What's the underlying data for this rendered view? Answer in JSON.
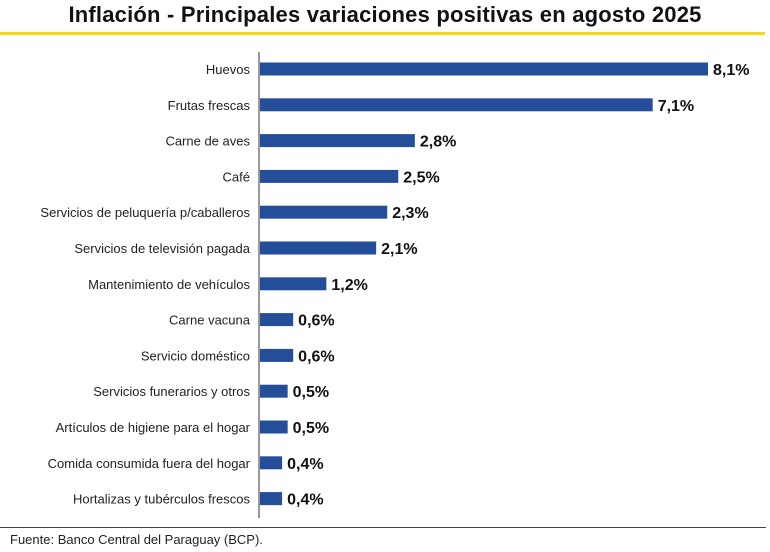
{
  "chart_data": {
    "type": "bar",
    "orientation": "horizontal",
    "title": "Inflación - Principales variaciones positivas en agosto 2025",
    "categories": [
      "Huevos",
      "Frutas frescas",
      "Carne de aves",
      "Café",
      "Servicios de peluquería p/caballeros",
      "Servicios de televisión pagada",
      "Mantenimiento de vehículos",
      "Carne vacuna",
      "Servicio doméstico",
      "Servicios funerarios y otros",
      "Artículos de higiene para el hogar",
      "Comida consumida fuera del hogar",
      "Hortalizas y tubérculos frescos"
    ],
    "values": [
      8.1,
      7.1,
      2.8,
      2.5,
      2.3,
      2.1,
      1.2,
      0.6,
      0.6,
      0.5,
      0.5,
      0.4,
      0.4
    ],
    "value_labels": [
      "8,1%",
      "7,1%",
      "2,8%",
      "2,5%",
      "2,3%",
      "2,1%",
      "1,2%",
      "0,6%",
      "0,6%",
      "0,5%",
      "0,5%",
      "0,4%",
      "0,4%"
    ],
    "xlabel": "",
    "ylabel": "",
    "xlim": [
      0,
      8.1
    ],
    "grid": false,
    "bar_color": "#254e9a",
    "accent_color": "#f2d81c"
  },
  "source": "Fuente: Banco Central del Paraguay (BCP)."
}
